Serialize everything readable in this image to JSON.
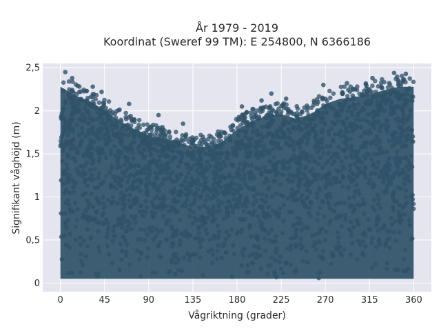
{
  "chart_data": {
    "type": "scatter",
    "title": [
      "År 1979 - 2019",
      "Koordinat (Sweref 99 TM): E 254800, N 6366186"
    ],
    "xlabel": "Vågriktning (grader)",
    "ylabel": "Signifikant våghöjd (m)",
    "xlim": [
      -18,
      378
    ],
    "ylim": [
      -0.1,
      2.55
    ],
    "x_ticks": [
      0,
      45,
      90,
      135,
      180,
      225,
      270,
      315,
      360
    ],
    "x_tick_labels": [
      "0",
      "45",
      "90",
      "135",
      "180",
      "225",
      "270",
      "315",
      "360"
    ],
    "y_ticks": [
      0,
      0.5,
      1,
      1.5,
      2,
      2.5
    ],
    "y_tick_labels": [
      "0",
      "0,5",
      "1",
      "1,5",
      "2",
      "2,5"
    ],
    "grid": true,
    "marker_color": "#2f5168",
    "background_color": "#e5e5ef",
    "series": [
      {
        "x_range": [
          0,
          360
        ],
        "y_min": 0.02,
        "upper_envelope": [
          [
            0,
            2.42
          ],
          [
            15,
            2.32
          ],
          [
            30,
            2.25
          ],
          [
            45,
            2.15
          ],
          [
            60,
            2.02
          ],
          [
            75,
            1.93
          ],
          [
            90,
            1.85
          ],
          [
            105,
            1.82
          ],
          [
            120,
            1.77
          ],
          [
            135,
            1.72
          ],
          [
            150,
            1.72
          ],
          [
            165,
            1.78
          ],
          [
            180,
            1.92
          ],
          [
            195,
            2.02
          ],
          [
            210,
            2.08
          ],
          [
            225,
            2.1
          ],
          [
            240,
            2.05
          ],
          [
            255,
            2.1
          ],
          [
            270,
            2.22
          ],
          [
            285,
            2.28
          ],
          [
            300,
            2.3
          ],
          [
            315,
            2.33
          ],
          [
            330,
            2.38
          ],
          [
            345,
            2.42
          ],
          [
            360,
            2.42
          ]
        ],
        "outliers": [
          [
            5,
            2.45
          ],
          [
            12,
            2.38
          ],
          [
            33,
            2.28
          ],
          [
            42,
            2.22
          ],
          [
            70,
            2.08
          ],
          [
            100,
            1.95
          ],
          [
            125,
            1.85
          ],
          [
            185,
            2.05
          ],
          [
            205,
            2.12
          ],
          [
            215,
            2.2
          ],
          [
            230,
            2.14
          ],
          [
            268,
            2.3
          ],
          [
            292,
            2.32
          ],
          [
            318,
            2.38
          ],
          [
            340,
            2.44
          ],
          [
            352,
            2.43
          ]
        ]
      }
    ]
  }
}
